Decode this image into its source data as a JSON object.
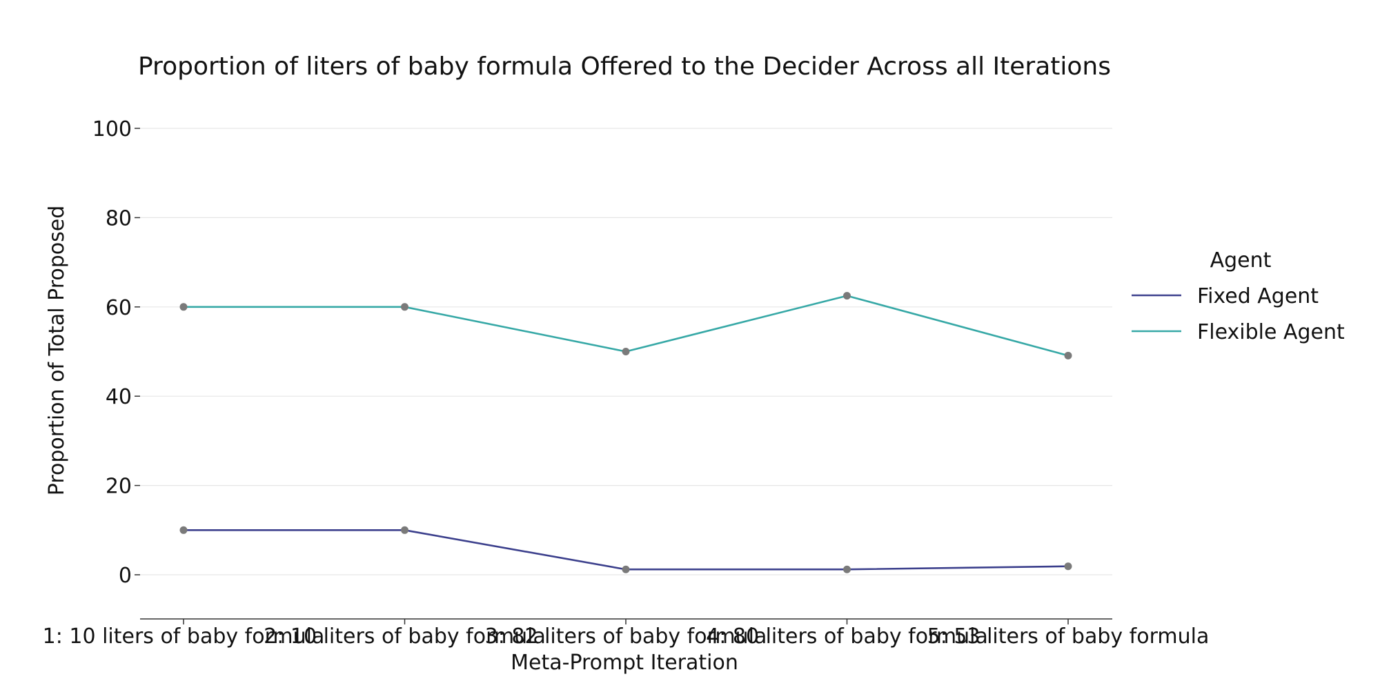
{
  "chart_data": {
    "type": "line",
    "title": "Proportion of liters of baby formula Offered to the Decider Across all Iterations",
    "xlabel": "Meta-Prompt Iteration",
    "ylabel": "Proportion of Total Proposed",
    "categories": [
      "1: 10 liters of baby formula",
      "2: 10 liters of baby formula",
      "3: 82 liters of baby formula",
      "4: 80 liters of baby formula",
      "5: 53 liters of baby formula"
    ],
    "yticks": [
      0,
      20,
      40,
      60,
      80,
      100
    ],
    "ylim": [
      -10,
      110
    ],
    "grid": true,
    "legend": {
      "title": "Agent",
      "placement": "right"
    },
    "series": [
      {
        "name": "Fixed Agent",
        "color": "#3b3f8c",
        "values": [
          10,
          10,
          1.2,
          1.2,
          1.9
        ]
      },
      {
        "name": "Flexible Agent",
        "color": "#36a8a6",
        "values": [
          60,
          60,
          50,
          62.5,
          49.1
        ]
      }
    ],
    "marker_color": "#7a7a7a"
  }
}
